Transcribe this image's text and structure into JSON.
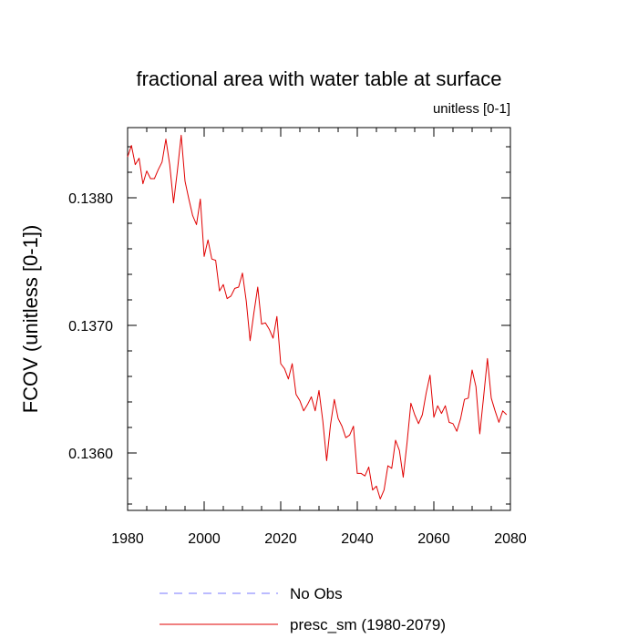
{
  "chart_data": {
    "type": "line",
    "title": "fractional area with water table at surface",
    "subtitle": "unitless [0-1]",
    "ylabel": "FCOV  (unitless [0-1])",
    "xlabel": "",
    "xlim": [
      1980,
      2080
    ],
    "ylim": [
      0.13555,
      0.13855
    ],
    "x_ticks": [
      1980,
      2000,
      2020,
      2040,
      2060,
      2080
    ],
    "y_ticks": [
      0.136,
      0.137,
      0.138
    ],
    "y_tick_labels": [
      "0.1360",
      "0.1370",
      "0.1380"
    ],
    "grid": false,
    "legend_position": "bottom-left",
    "series": [
      {
        "name": "No Obs",
        "color": "#7777ff",
        "dash": "dashed",
        "values": []
      },
      {
        "name": "presc_sm (1980-2079)",
        "color": "#e00000",
        "dash": "solid",
        "x": [
          1980,
          1981,
          1982,
          1983,
          1984,
          1985,
          1986,
          1987,
          1988,
          1989,
          1990,
          1991,
          1992,
          1993,
          1994,
          1995,
          1996,
          1997,
          1998,
          1999,
          2000,
          2001,
          2002,
          2003,
          2004,
          2005,
          2006,
          2007,
          2008,
          2009,
          2010,
          2011,
          2012,
          2013,
          2014,
          2015,
          2016,
          2017,
          2018,
          2019,
          2020,
          2021,
          2022,
          2023,
          2024,
          2025,
          2026,
          2027,
          2028,
          2029,
          2030,
          2031,
          2032,
          2033,
          2034,
          2035,
          2036,
          2037,
          2038,
          2039,
          2040,
          2041,
          2042,
          2043,
          2044,
          2045,
          2046,
          2047,
          2048,
          2049,
          2050,
          2051,
          2052,
          2053,
          2054,
          2055,
          2056,
          2057,
          2058,
          2059,
          2060,
          2061,
          2062,
          2063,
          2064,
          2065,
          2066,
          2067,
          2068,
          2069,
          2070,
          2071,
          2072,
          2073,
          2074,
          2075,
          2076,
          2077,
          2078,
          2079
        ],
        "values": [
          0.13832,
          0.13841,
          0.13826,
          0.13831,
          0.13811,
          0.13821,
          0.13815,
          0.13815,
          0.13822,
          0.13828,
          0.13846,
          0.13826,
          0.13796,
          0.13821,
          0.13849,
          0.13813,
          0.13799,
          0.13786,
          0.13779,
          0.13799,
          0.13754,
          0.13767,
          0.13752,
          0.13751,
          0.13727,
          0.13732,
          0.13721,
          0.13723,
          0.13729,
          0.1373,
          0.13741,
          0.13719,
          0.13688,
          0.1371,
          0.1373,
          0.13701,
          0.13702,
          0.13697,
          0.1369,
          0.13707,
          0.1367,
          0.13666,
          0.13658,
          0.1367,
          0.13646,
          0.13641,
          0.13633,
          0.13638,
          0.13644,
          0.13633,
          0.13649,
          0.13625,
          0.13594,
          0.13622,
          0.13642,
          0.13627,
          0.13621,
          0.13612,
          0.13614,
          0.13621,
          0.13584,
          0.13584,
          0.13582,
          0.13589,
          0.13571,
          0.13574,
          0.13564,
          0.13571,
          0.1359,
          0.13588,
          0.1361,
          0.13602,
          0.13581,
          0.13608,
          0.13639,
          0.1363,
          0.13623,
          0.1363,
          0.13647,
          0.13661,
          0.13628,
          0.13637,
          0.13631,
          0.13637,
          0.13624,
          0.13623,
          0.13617,
          0.13627,
          0.13642,
          0.13643,
          0.13665,
          0.13652,
          0.13615,
          0.13644,
          0.13674,
          0.13643,
          0.13633,
          0.13624,
          0.13633,
          0.1363
        ]
      }
    ]
  }
}
